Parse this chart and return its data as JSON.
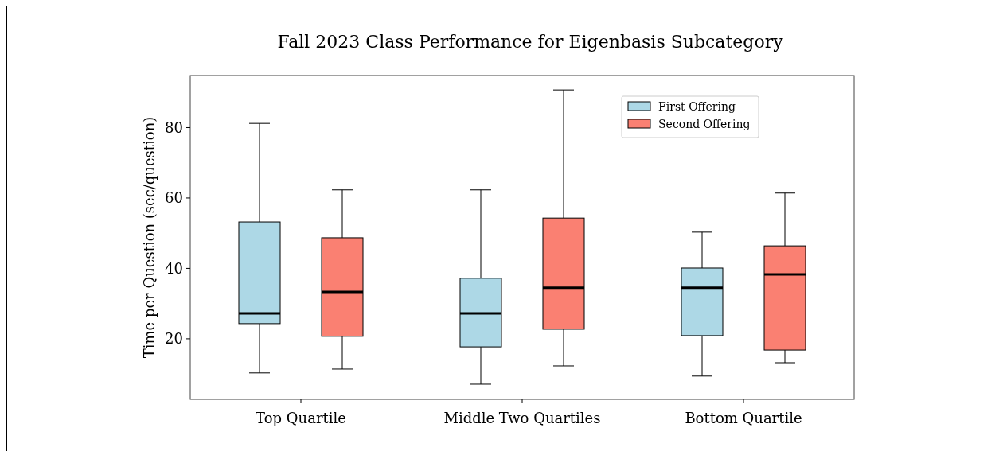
{
  "chart_data": {
    "type": "box",
    "title": "Fall 2023 Class Performance for Eigenbasis Subcategory",
    "ylabel": "Time per Question (sec/question)",
    "categories": [
      "Top Quartile",
      "Middle Two Quartiles",
      "Bottom Quartile"
    ],
    "ylim": [
      2.8,
      94.8
    ],
    "yticks": [
      20,
      40,
      60,
      80
    ],
    "grid": false,
    "legend": "top right",
    "series": [
      {
        "name": "First Offering",
        "color": "#add8e6",
        "boxes": [
          {
            "low": 10.3,
            "q1": 24.3,
            "median": 27.2,
            "q3": 53.2,
            "high": 81.2
          },
          {
            "low": 7.1,
            "q1": 17.7,
            "median": 27.2,
            "q3": 37.2,
            "high": 62.3
          },
          {
            "low": 9.4,
            "q1": 20.9,
            "median": 34.5,
            "q3": 40.1,
            "high": 50.3
          }
        ]
      },
      {
        "name": "Second Offering",
        "color": "#fa8072",
        "boxes": [
          {
            "low": 11.4,
            "q1": 20.7,
            "median": 33.3,
            "q3": 48.7,
            "high": 62.3
          },
          {
            "low": 12.3,
            "q1": 22.7,
            "median": 34.5,
            "q3": 54.3,
            "high": 90.7
          },
          {
            "low": 13.2,
            "q1": 16.8,
            "median": 38.3,
            "q3": 46.4,
            "high": 61.4
          }
        ]
      }
    ]
  }
}
